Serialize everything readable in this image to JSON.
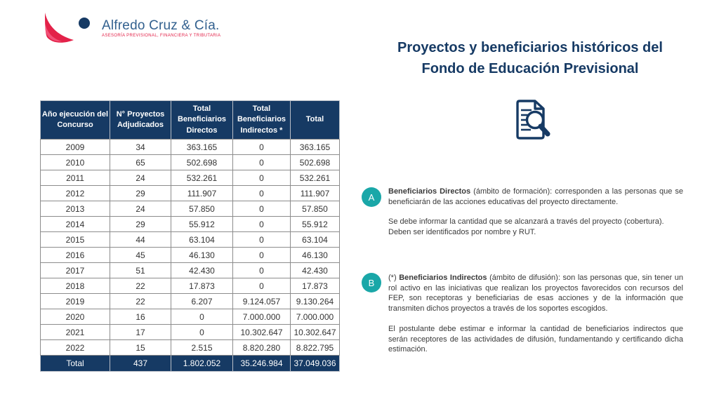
{
  "logo": {
    "company": "Alfredo Cruz & Cía.",
    "tagline": "ASESORÍA PREVISIONAL, FINANCIERA Y TRIBUTARIA"
  },
  "title": {
    "line1": "Proyectos y beneficiarios históricos del",
    "line2": "Fondo de Educación Previsional"
  },
  "table": {
    "headers": [
      "Año ejecución del Concurso",
      "N° Proyectos Adjudicados",
      "Total Beneficiarios Directos",
      "Total Beneficiarios Indirectos *",
      "Total"
    ],
    "rows": [
      [
        "2009",
        "34",
        "363.165",
        "0",
        "363.165"
      ],
      [
        "2010",
        "65",
        "502.698",
        "0",
        "502.698"
      ],
      [
        "2011",
        "24",
        "532.261",
        "0",
        "532.261"
      ],
      [
        "2012",
        "29",
        "111.907",
        "0",
        "111.907"
      ],
      [
        "2013",
        "24",
        "57.850",
        "0",
        "57.850"
      ],
      [
        "2014",
        "29",
        "55.912",
        "0",
        "55.912"
      ],
      [
        "2015",
        "44",
        "63.104",
        "0",
        "63.104"
      ],
      [
        "2016",
        "45",
        "46.130",
        "0",
        "46.130"
      ],
      [
        "2017",
        "51",
        "42.430",
        "0",
        "42.430"
      ],
      [
        "2018",
        "22",
        "17.873",
        "0",
        "17.873"
      ],
      [
        "2019",
        "22",
        "6.207",
        "9.124.057",
        "9.130.264"
      ],
      [
        "2020",
        "16",
        "0",
        "7.000.000",
        "7.000.000"
      ],
      [
        "2021",
        "17",
        "0",
        "10.302.647",
        "10.302.647"
      ],
      [
        "2022",
        "15",
        "2.515",
        "8.820.280",
        "8.822.795"
      ]
    ],
    "total_row": [
      "Total",
      "437",
      "1.802.052",
      "35.246.984",
      "37.049.036"
    ]
  },
  "annotations": [
    {
      "badge": "A",
      "bold_term": "Beneficiarios Directos",
      "para1_rest": " (ámbito de formación): corresponden a las personas que se beneficiarán de las acciones educativas del proyecto directamente.",
      "line1": "Se debe informar la cantidad que se alcanzará a través del proyecto (cobertura).",
      "line2": "Deben ser identificados por nombre y RUT."
    },
    {
      "badge": "B",
      "prefix": "(*) ",
      "bold_term": "Beneficiarios Indirectos",
      "para1_rest": " (ámbito de difusión): son las personas que, sin tener un rol activo en las iniciativas que realizan los proyectos favorecidos con recursos del FEP, son receptoras y beneficiarias de esas acciones y de la información que transmiten dichos proyectos a través de los soportes escogidos.",
      "para2": "El postulante debe estimar e informar la cantidad de beneficiarios indirectos que serán receptores de las actividades de difusión, fundamentando y certificando dicha estimación."
    }
  ],
  "icons": {
    "logo_mark": "logo-swoosh-icon",
    "document_magnifier": "document-search-icon"
  },
  "colors": {
    "navy": "#163A64",
    "teal": "#1AA7A8",
    "logo_red": "#E32249",
    "logo_blue": "#33618F",
    "body_text": "#3A3A3A",
    "border_gray": "#8C8C8C"
  }
}
